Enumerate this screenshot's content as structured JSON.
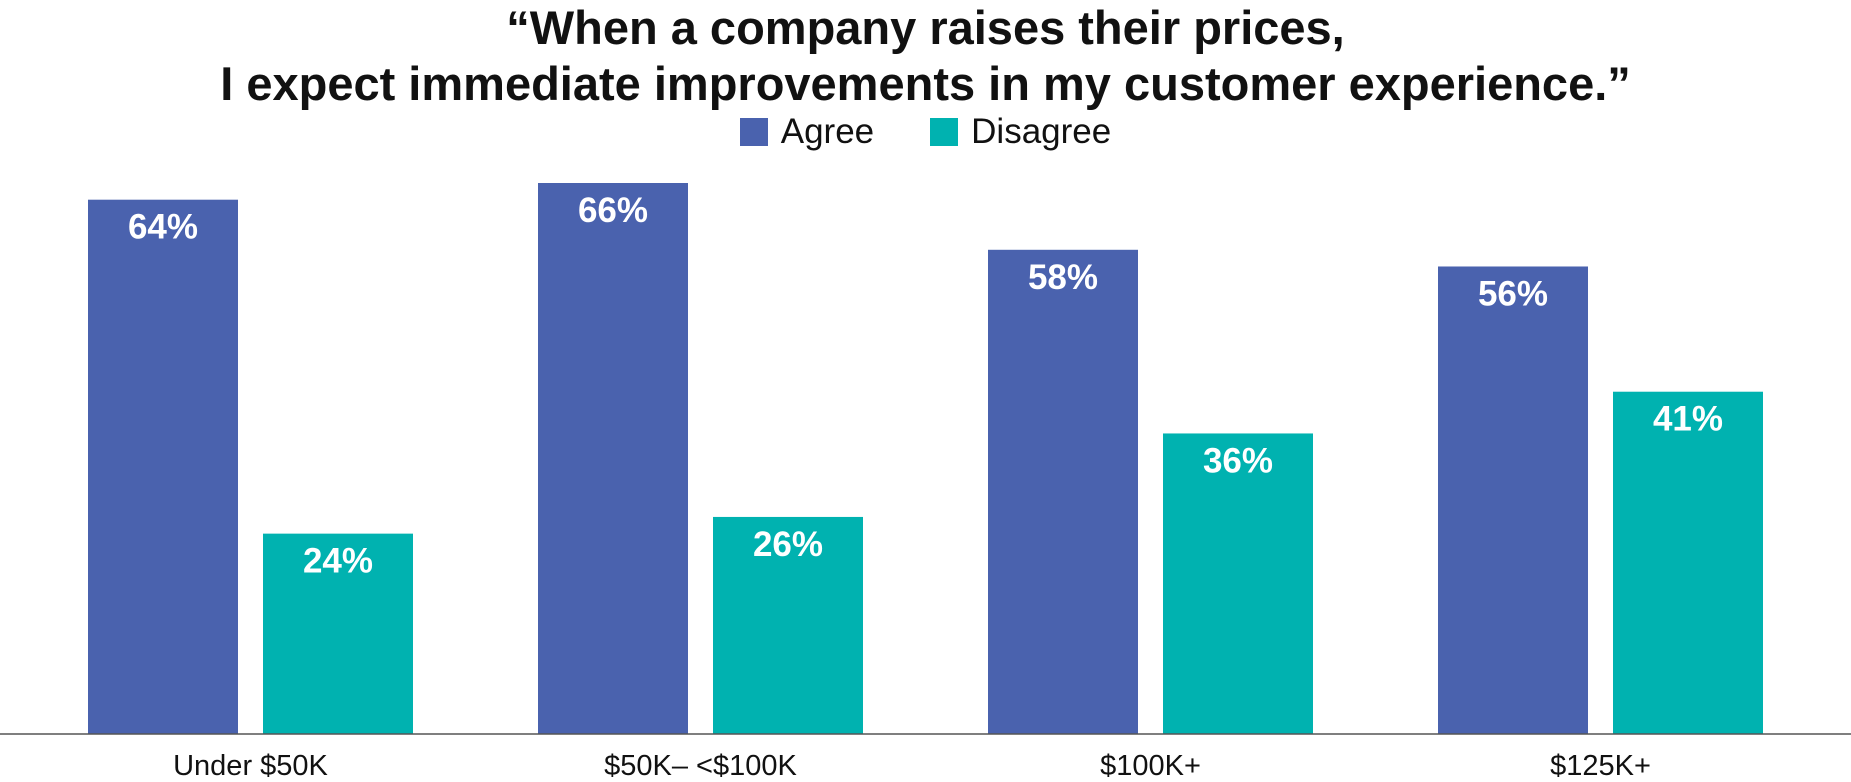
{
  "chart_data": {
    "type": "bar",
    "title_lines": [
      "“When a company raises their prices,",
      "I expect immediate improvements in my customer experience.”"
    ],
    "categories": [
      "Under $50K",
      "$50K– <$100K",
      "$100K+",
      "$125K+"
    ],
    "series": [
      {
        "name": "Agree",
        "color": "#4A62AE",
        "values": [
          64,
          66,
          58,
          56
        ],
        "labels": [
          "64%",
          "66%",
          "58%",
          "56%"
        ]
      },
      {
        "name": "Disagree",
        "color": "#00B2B0",
        "values": [
          24,
          26,
          36,
          41
        ],
        "labels": [
          "24%",
          "26%",
          "36%",
          "41%"
        ]
      }
    ],
    "ylim": [
      0,
      66
    ],
    "grid": false,
    "legend_position": "top-center",
    "baseline_color": "#555555"
  }
}
